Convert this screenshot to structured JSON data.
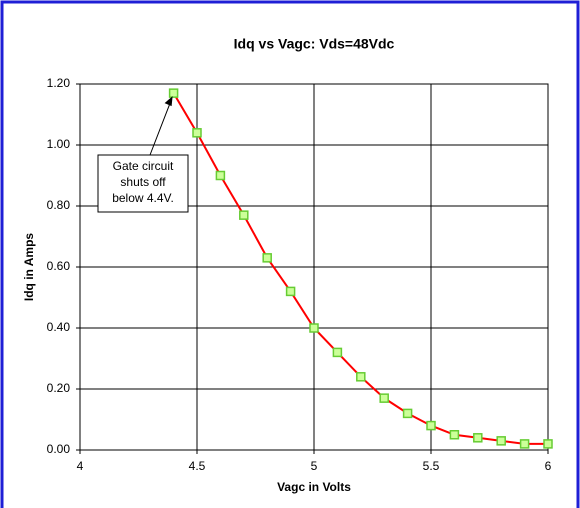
{
  "chart_data": {
    "type": "line",
    "title": "Idq vs Vagc: Vds=48Vdc",
    "x_label": "Vagc in Volts",
    "y_label": "Idq in Amps",
    "x": [
      4.4,
      4.5,
      4.6,
      4.7,
      4.8,
      4.9,
      5.0,
      5.1,
      5.2,
      5.3,
      5.4,
      5.5,
      5.6,
      5.7,
      5.8,
      5.9,
      6.0
    ],
    "series": [
      {
        "color": "#ff0000",
        "marker_color": "#ccff99",
        "marker_edge": "#66cc33",
        "values": [
          1.17,
          1.04,
          0.9,
          0.77,
          0.63,
          0.52,
          0.4,
          0.32,
          0.24,
          0.17,
          0.12,
          0.08,
          0.05,
          0.04,
          0.03,
          0.02,
          0.02
        ]
      }
    ],
    "xlim": [
      4,
      6
    ],
    "xticks": [
      4,
      4.5,
      5,
      5.5,
      6
    ],
    "ylim": [
      0,
      1.2
    ],
    "yticks": [
      {
        "value": 0,
        "label": "0.00"
      },
      {
        "value": 0.2,
        "label": "0.20"
      },
      {
        "value": 0.4,
        "label": "0.40"
      },
      {
        "value": 0.6,
        "label": "0.60"
      },
      {
        "value": 0.8,
        "label": "0.80"
      },
      {
        "value": 1.0,
        "label": "1.00"
      },
      {
        "value": 1.2,
        "label": "1.20"
      }
    ],
    "grid": true,
    "annotation": {
      "lines": [
        "Gate circuit",
        "shuts off",
        "below 4.4V."
      ],
      "x": 4.4,
      "y": 1.17
    }
  }
}
